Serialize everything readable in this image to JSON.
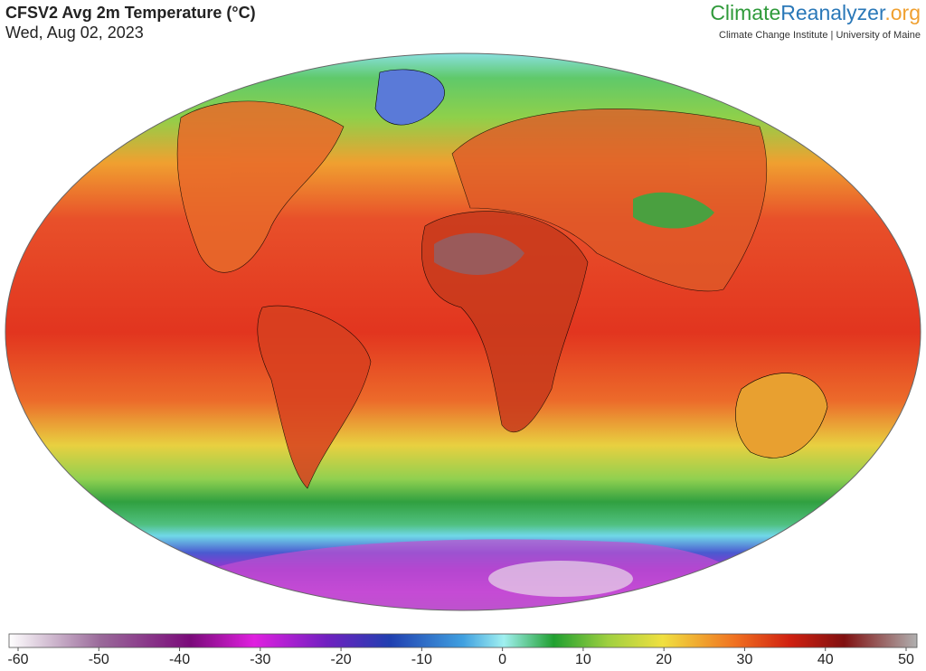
{
  "header": {
    "title": "CFSV2 Avg 2m Temperature (°C)",
    "date": "Wed, Aug 02, 2023"
  },
  "brand": {
    "parts": [
      "Climate",
      "Reanalyzer",
      ".org"
    ],
    "subtitle": "Climate Change Institute | University of Maine"
  },
  "colorbar": {
    "lim": [
      -60,
      50
    ],
    "ticks": [
      -60,
      -50,
      -40,
      -30,
      -20,
      -10,
      0,
      10,
      20,
      30,
      40,
      50
    ]
  }
}
